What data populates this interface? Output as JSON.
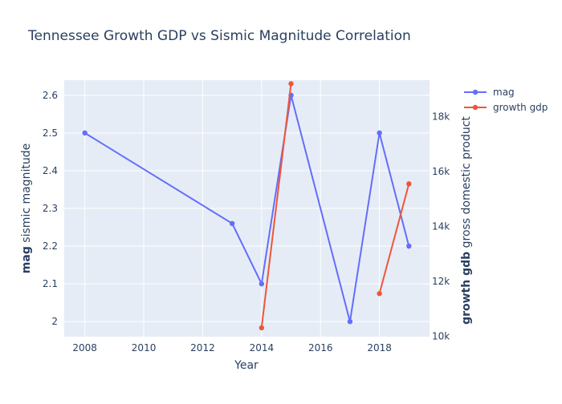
{
  "chart_data": {
    "type": "line",
    "title": "Tennessee Growth GDP vs Sismic Magnitude Correlation",
    "xlabel": "Year",
    "ylabel_bold": "mag",
    "ylabel_rest": " sismic magnitude",
    "y2label_bold": "growth gdb",
    "y2label_rest": " gross domestic product",
    "xlim": [
      2007.3,
      2019.7
    ],
    "ylim": [
      1.96,
      2.64
    ],
    "y2lim": [
      9980,
      19330
    ],
    "xticks": [
      2008,
      2010,
      2012,
      2014,
      2016,
      2018
    ],
    "xtick_labels": [
      "2008",
      "2010",
      "2012",
      "2014",
      "2016",
      "2018"
    ],
    "yticks": [
      2,
      2.1,
      2.2,
      2.3,
      2.4,
      2.5,
      2.6
    ],
    "ytick_labels": [
      "2",
      "2.1",
      "2.2",
      "2.3",
      "2.4",
      "2.5",
      "2.6"
    ],
    "y2ticks": [
      10000,
      12000,
      14000,
      16000,
      18000
    ],
    "y2tick_labels": [
      "10k",
      "12k",
      "14k",
      "16k",
      "18k"
    ],
    "grid": true,
    "legend_position": "top-right",
    "series": [
      {
        "name": "mag",
        "axis": "left",
        "color": "#636efa",
        "points": [
          {
            "x": 2008,
            "y": 2.5
          },
          {
            "x": 2013,
            "y": 2.26
          },
          {
            "x": 2014,
            "y": 2.1
          },
          {
            "x": 2015,
            "y": 2.6
          },
          {
            "x": 2017,
            "y": 2.0
          },
          {
            "x": 2018,
            "y": 2.5
          },
          {
            "x": 2019,
            "y": 2.2
          }
        ]
      },
      {
        "name": "growth gdp",
        "axis": "right",
        "color": "#ef553b",
        "segments": [
          [
            {
              "x": 2014,
              "y": 10300
            },
            {
              "x": 2015,
              "y": 19200
            }
          ],
          [
            {
              "x": 2018,
              "y": 11550
            },
            {
              "x": 2019,
              "y": 15550
            }
          ]
        ]
      }
    ]
  }
}
